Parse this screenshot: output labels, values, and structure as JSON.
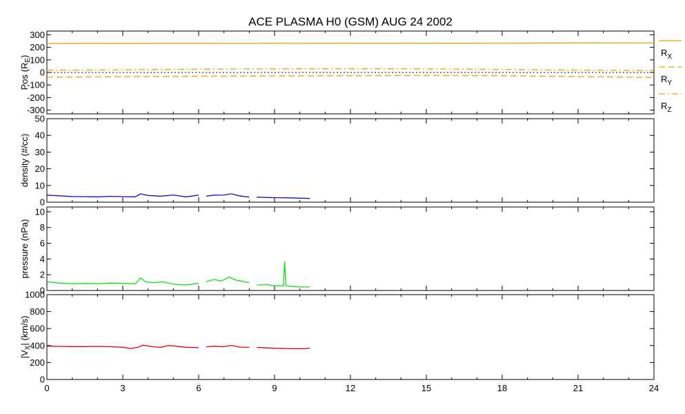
{
  "chart_data": {
    "type": "line",
    "title": "ACE PLASMA H0 (GSM)   AUG 24 2002",
    "x_ticks": [
      "0",
      "3",
      "6",
      "9",
      "12",
      "15",
      "18",
      "21",
      "24"
    ],
    "xlim": [
      0,
      24
    ],
    "grid": false,
    "legend_placement": "right",
    "panels": [
      {
        "id": "position",
        "ylabel_main": "Pos (R",
        "ylabel_sub": "E",
        "ylabel_end": ")",
        "ylim": [
          -330,
          330
        ],
        "y_ticks": [
          "300",
          "200",
          "100",
          "0",
          "-100",
          "-200",
          "-300"
        ],
        "y_tick_values": [
          300,
          200,
          100,
          0,
          -100,
          -200,
          -300
        ],
        "zero_line": true,
        "color": "#f0a000",
        "series": [
          {
            "name": "R",
            "sub": "X",
            "style": "solid",
            "x": [
              0,
              6,
              12,
              18,
              24
            ],
            "values": [
              231,
              232,
              233,
              234,
              236
            ]
          },
          {
            "name": "R",
            "sub": "Y",
            "style": "dashed",
            "x": [
              0,
              2,
              4,
              6,
              8,
              10,
              12,
              14,
              16,
              18,
              20,
              22,
              24
            ],
            "values": [
              -38,
              -36,
              -33,
              -30,
              -28,
              -27,
              -26,
              -25,
              -25,
              -26,
              -30,
              -36,
              -40
            ]
          },
          {
            "name": "R",
            "sub": "Z",
            "style": "dashdot",
            "x": [
              0,
              2,
              4,
              6,
              8,
              10,
              12,
              14,
              16,
              18,
              20,
              22,
              24
            ],
            "values": [
              18,
              20,
              23,
              26,
              28,
              29,
              29,
              29,
              27,
              24,
              20,
              17,
              15
            ]
          }
        ]
      },
      {
        "id": "density",
        "ylabel_main": "density (#/cc)",
        "ylim": [
          0,
          50
        ],
        "y_ticks": [
          "50",
          "40",
          "30",
          "20",
          "10",
          "0"
        ],
        "y_tick_values": [
          50,
          40,
          30,
          20,
          10,
          0
        ],
        "color": "#1010c0",
        "series": [
          {
            "x": [
              0,
              0.5,
              1,
              1.5,
              2,
              2.5,
              3,
              3.5,
              3.7,
              4,
              4.5,
              5,
              5.5,
              6
            ],
            "values": [
              4.2,
              3.8,
              3.4,
              3.3,
              3.2,
              3.5,
              3.3,
              3.2,
              5.0,
              4.0,
              3.6,
              4.3,
              3.2,
              4.2
            ]
          },
          {
            "x": [
              6.3,
              6.6,
              7,
              7.3,
              7.6,
              8
            ],
            "values": [
              3.6,
              4.2,
              4.3,
              5.0,
              3.8,
              3.0
            ]
          },
          {
            "x": [
              8.3,
              8.7,
              9,
              9.5,
              10,
              10.4
            ],
            "values": [
              3.0,
              2.8,
              2.7,
              2.6,
              2.4,
              2.2
            ]
          }
        ]
      },
      {
        "id": "pressure",
        "ylabel_main": "pressure (nPa)",
        "ylim": [
          0,
          10.6
        ],
        "y_ticks": [
          "10",
          "8",
          "6",
          "4",
          "2",
          "0"
        ],
        "y_tick_values": [
          10,
          8,
          6,
          4,
          2,
          0
        ],
        "color": "#10e010",
        "series": [
          {
            "x": [
              0,
              0.5,
              1,
              1.5,
              2,
              2.5,
              3,
              3.5,
              3.7,
              3.9,
              4.2,
              4.6,
              5,
              5.5,
              6
            ],
            "values": [
              1.1,
              0.95,
              0.85,
              0.9,
              0.85,
              0.95,
              0.9,
              0.85,
              1.6,
              1.1,
              1.0,
              1.1,
              0.8,
              0.7,
              0.9
            ]
          },
          {
            "x": [
              6.3,
              6.6,
              6.9,
              7.2,
              7.5,
              8
            ],
            "values": [
              1.1,
              1.4,
              1.2,
              1.7,
              1.3,
              1.0
            ]
          },
          {
            "x": [
              8.3,
              8.7,
              9,
              9.35,
              9.4,
              9.45,
              9.7,
              10,
              10.4
            ],
            "values": [
              0.7,
              0.75,
              0.6,
              0.6,
              3.7,
              0.6,
              0.5,
              0.45,
              0.45
            ]
          }
        ]
      },
      {
        "id": "velocity",
        "ylabel_main": "|V",
        "ylabel_sub": "X",
        "ylabel_end": "| (km/s)",
        "ylim": [
          0,
          1000
        ],
        "y_ticks": [
          "1000",
          "800",
          "600",
          "400",
          "200",
          "0"
        ],
        "y_tick_values": [
          1000,
          800,
          600,
          400,
          200,
          0
        ],
        "color": "#e00000",
        "series": [
          {
            "x": [
              0,
              0.5,
              1,
              1.5,
              2,
              2.5,
              3,
              3.3,
              3.6,
              3.8,
              4.2,
              4.5,
              4.8,
              5,
              5.5,
              6
            ],
            "values": [
              393,
              390,
              388,
              388,
              390,
              387,
              380,
              365,
              380,
              405,
              385,
              380,
              400,
              395,
              380,
              375
            ]
          },
          {
            "x": [
              6.3,
              6.6,
              7,
              7.3,
              7.6,
              8
            ],
            "values": [
              385,
              392,
              387,
              402,
              383,
              378
            ]
          },
          {
            "x": [
              8.3,
              8.7,
              9,
              9.5,
              10,
              10.4
            ],
            "values": [
              378,
              372,
              368,
              365,
              362,
              368
            ]
          }
        ]
      }
    ]
  }
}
